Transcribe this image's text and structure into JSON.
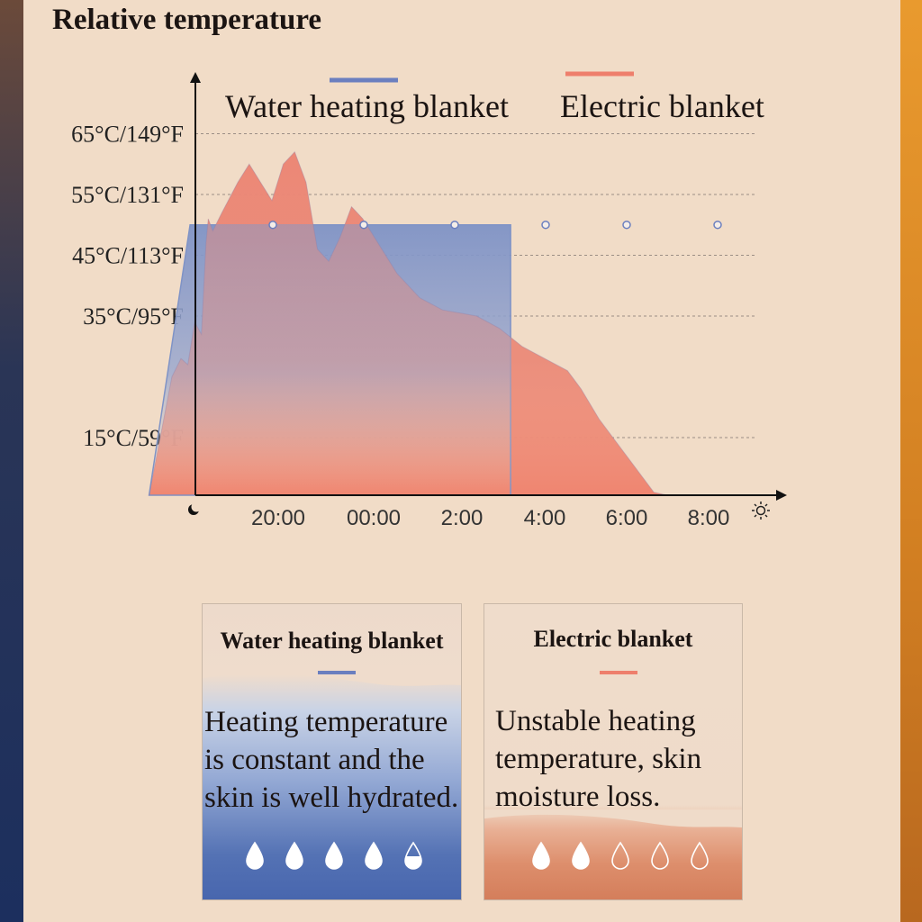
{
  "title": "Relative temperature",
  "colors": {
    "water": "#6b7fbf",
    "electric": "#ee7f6c",
    "water_fill": "#7f93c6",
    "electric_fill": "#e98a7b",
    "grid": "#9b8e85",
    "axis": "#111111",
    "drop_fill": "#ffffff"
  },
  "chart_data": {
    "type": "area",
    "title": "Relative temperature",
    "legend": {
      "placement": "top",
      "entries": [
        "Water heating blanket",
        "Electric blanket"
      ]
    },
    "x_tick_labels": [
      "20:00",
      "00:00",
      "2:00",
      "4:00",
      "6:00",
      "8:00"
    ],
    "x_start_icon": "moon-icon",
    "x_end_icon": "sun-icon",
    "y_tick_labels": [
      "15°C/59°F",
      "35°C/95°F",
      "45°C/113°F",
      "55°C/131°F",
      "65°C/149°F"
    ],
    "y_ticks": [
      15,
      35,
      45,
      55,
      65
    ],
    "ylim": [
      0,
      74
    ],
    "grid": "dashed horizontal",
    "series": [
      {
        "name": "Water heating blanket",
        "color": "#6b7fbf",
        "markers": true,
        "points": [
          [
            -2.7,
            0
          ],
          [
            -1.8,
            50
          ],
          [
            -1,
            50
          ],
          [
            0,
            50
          ],
          [
            1,
            50
          ],
          [
            2,
            50
          ],
          [
            3,
            50
          ],
          [
            4,
            50
          ],
          [
            5,
            50
          ],
          [
            5.25,
            50
          ],
          [
            5.25,
            0
          ]
        ]
      },
      {
        "name": "Electric blanket",
        "color": "#ee7f6c",
        "points": [
          [
            -2.7,
            0
          ],
          [
            -2.2,
            25
          ],
          [
            -2.0,
            28
          ],
          [
            -1.85,
            27
          ],
          [
            -1.7,
            34
          ],
          [
            -1.55,
            32
          ],
          [
            -1.45,
            47
          ],
          [
            -1.4,
            51
          ],
          [
            -1.3,
            49
          ],
          [
            -1.1,
            52
          ],
          [
            -0.75,
            57
          ],
          [
            -0.5,
            60
          ],
          [
            -0.25,
            57
          ],
          [
            0,
            54
          ],
          [
            0.25,
            60
          ],
          [
            0.5,
            62
          ],
          [
            0.75,
            57
          ],
          [
            1,
            46
          ],
          [
            1.25,
            44
          ],
          [
            1.5,
            48
          ],
          [
            1.75,
            53
          ],
          [
            2,
            51
          ],
          [
            2.25,
            48
          ],
          [
            2.75,
            42
          ],
          [
            3.25,
            38
          ],
          [
            3.75,
            36
          ],
          [
            4.5,
            35
          ],
          [
            5,
            33
          ],
          [
            5.5,
            30
          ],
          [
            6,
            28
          ],
          [
            6.5,
            26
          ],
          [
            6.8,
            23
          ],
          [
            7.2,
            18
          ],
          [
            7.8,
            12
          ],
          [
            8.4,
            6
          ],
          [
            8.7,
            0
          ]
        ]
      }
    ]
  },
  "cards": [
    {
      "title": "Water heating blanket",
      "text": [
        "Heating temperature",
        "is constant and the",
        "skin is well hydrated."
      ],
      "drops": {
        "rating": 4.5,
        "max": 5
      }
    },
    {
      "title": "Electric blanket",
      "text": [
        "Unstable heating",
        "temperature, skin",
        "moisture loss."
      ],
      "drops": {
        "rating": 2,
        "max": 5
      }
    }
  ]
}
